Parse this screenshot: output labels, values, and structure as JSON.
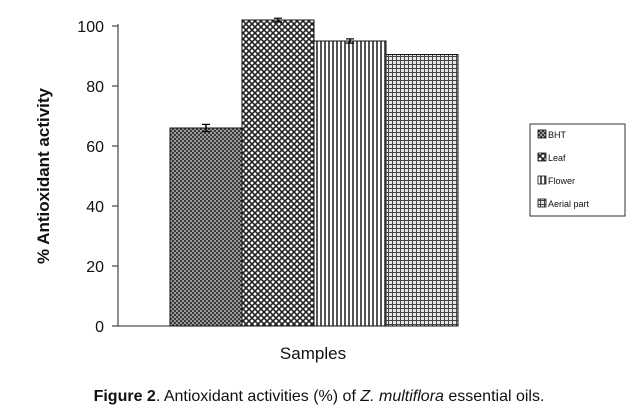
{
  "chart_data": {
    "type": "bar",
    "title": "",
    "xlabel": "Samples",
    "ylabel": "% Antioxidant activity",
    "ylim": [
      0,
      100
    ],
    "yticks": [
      0,
      20,
      40,
      60,
      80,
      100
    ],
    "grid": false,
    "legend_position": "right",
    "series": [
      {
        "name": "BHT",
        "value": 66,
        "error": 1.2
      },
      {
        "name": "Leaf",
        "value": 102,
        "error": 0.6
      },
      {
        "name": "Flower",
        "value": 95,
        "error": 0.7
      },
      {
        "name": "Aerial part",
        "value": 90.5,
        "error": 0
      }
    ]
  },
  "caption": {
    "label": "Figure 2",
    "text_before": ". Antioxidant activities (%) of ",
    "species": "Z. multiflora",
    "text_after": " essential oils."
  }
}
